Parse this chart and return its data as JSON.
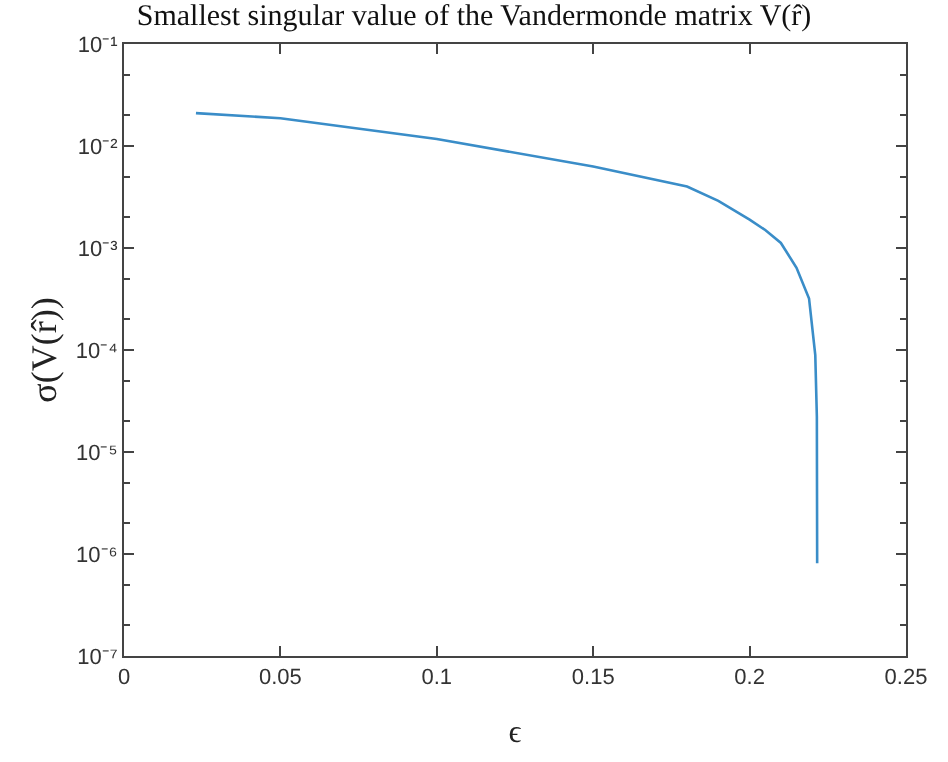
{
  "chart_data": {
    "type": "line",
    "title": "Smallest singular value of the Vandermonde matrix V(r̂)",
    "xlabel": "ϵ",
    "ylabel": "σ(V(r̂))",
    "series": [
      {
        "color": "#3a8dc8",
        "x": [
          0.023,
          0.05,
          0.1,
          0.15,
          0.18,
          0.19,
          0.2,
          0.205,
          0.21,
          0.215,
          0.219,
          0.221,
          0.2215,
          0.2216
        ],
        "values": [
          0.021,
          0.0187,
          0.0117,
          0.0063,
          0.004,
          0.0029,
          0.0019,
          0.0015,
          0.00112,
          0.00064,
          0.00032,
          8.9e-05,
          2.2e-05,
          8.1e-07
        ]
      }
    ],
    "log": "y",
    "xlim": [
      0,
      0.25
    ],
    "xticks": [
      0,
      0.05,
      0.1,
      0.15,
      0.2,
      0.25
    ],
    "ylim": [
      1e-07,
      0.1
    ],
    "yticks": [
      {
        "value": 1e-07,
        "label": "10⁻⁷"
      },
      {
        "value": 1e-06,
        "label": "10⁻⁶"
      },
      {
        "value": 1e-05,
        "label": "10⁻⁵"
      },
      {
        "value": 0.0001,
        "label": "10⁻⁴"
      },
      {
        "value": 0.001,
        "label": "10⁻³"
      },
      {
        "value": 0.01,
        "label": "10⁻²"
      },
      {
        "value": 0.1,
        "label": "10⁻¹"
      }
    ],
    "marker": "none",
    "line_style": "solid"
  }
}
